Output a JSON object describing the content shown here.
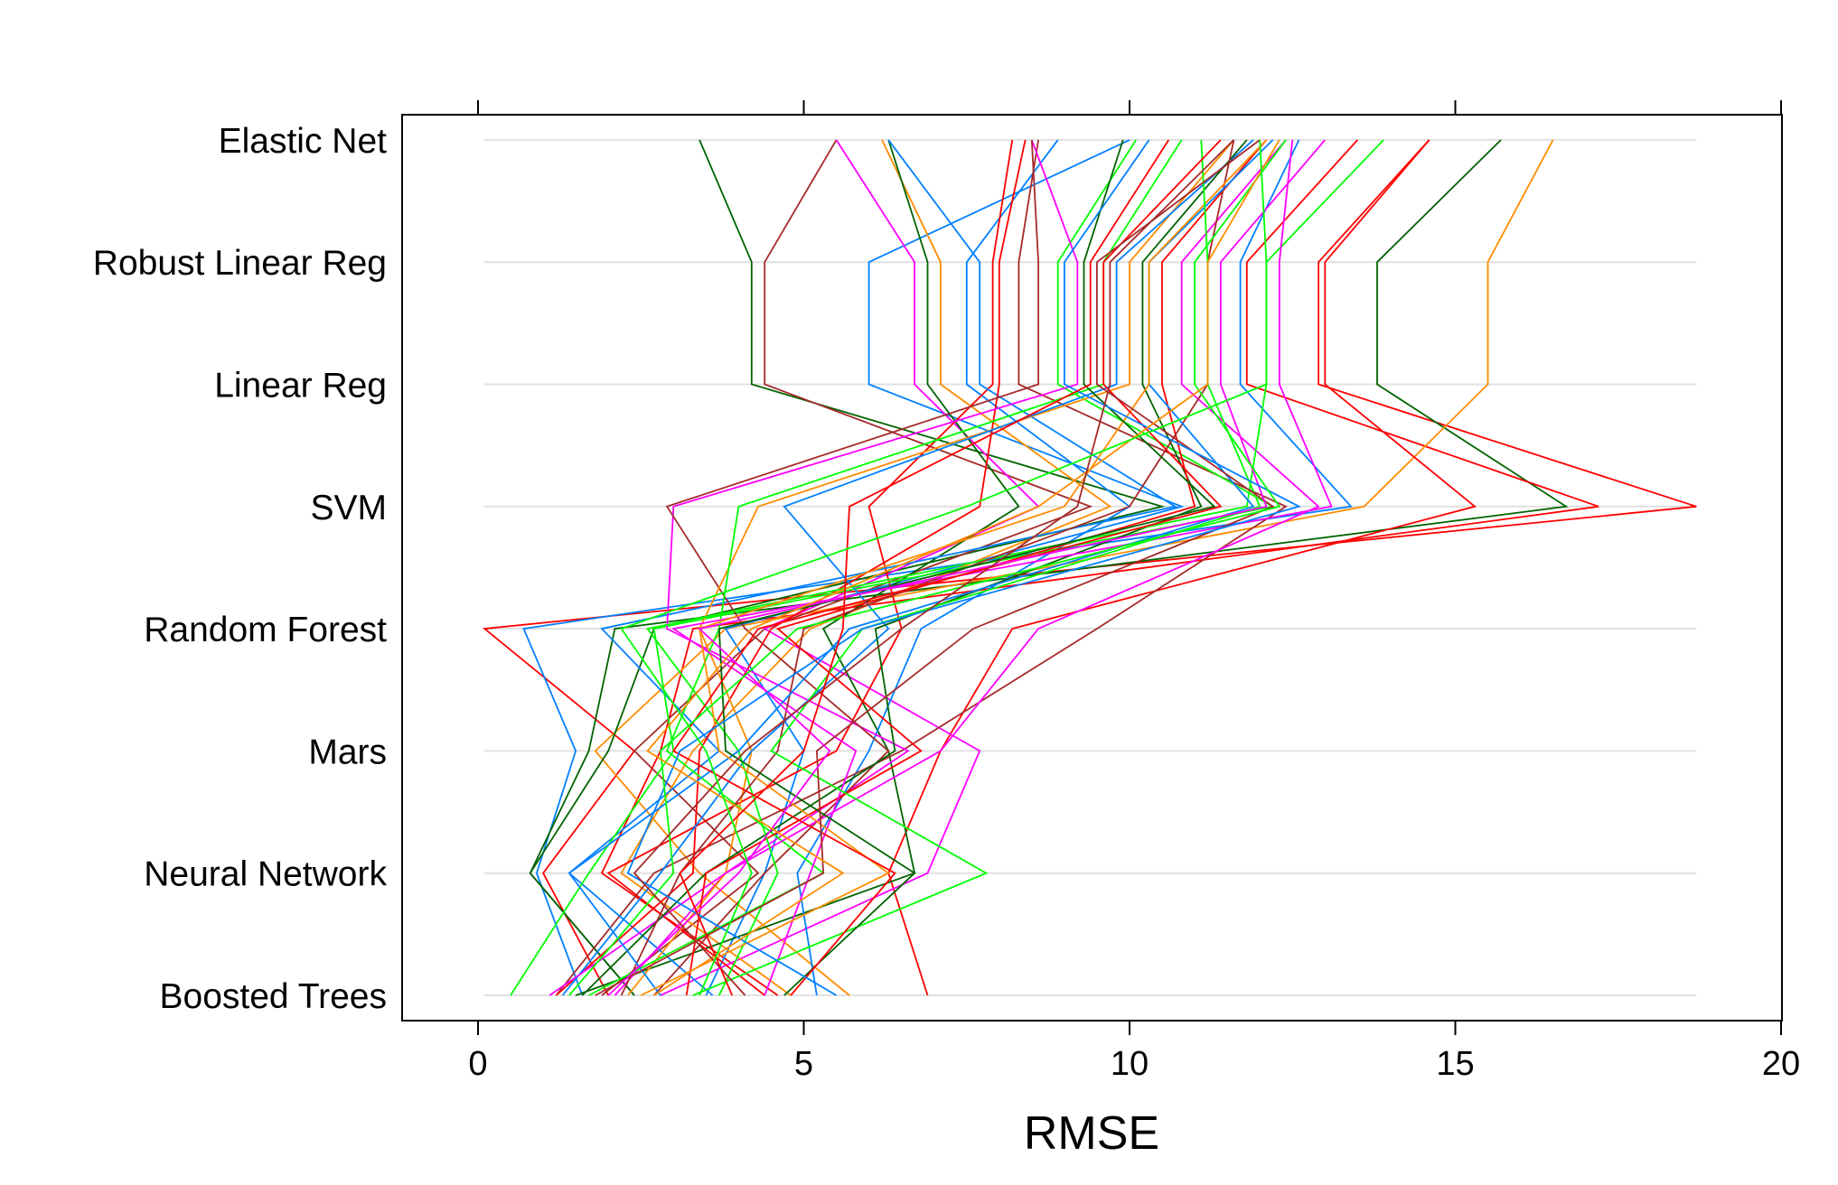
{
  "chart_data": {
    "type": "line",
    "subtype": "parallel-coordinates",
    "title": "",
    "xlabel": "RMSE",
    "ylabel": "",
    "xlim": [
      -1.2,
      20
    ],
    "x_ticks": [
      "0",
      "5",
      "10",
      "15",
      "20"
    ],
    "x_tick_values": [
      0,
      5,
      10,
      15,
      20
    ],
    "grid": "horizontal",
    "categories": [
      "Boosted Trees",
      "Neural Network",
      "Mars",
      "Random Forest",
      "SVM",
      "Linear Reg",
      "Robust Linear Reg",
      "Elastic Net"
    ],
    "palette": [
      "#0080ff",
      "#ff00ff",
      "#006400",
      "#ff0000",
      "#ff8c00",
      "#00ff00",
      "#a52a2a"
    ],
    "series": [
      {
        "color": "#ff0000",
        "values": [
          2.0,
          1.0,
          2.4,
          0.1,
          18.7,
          12.9,
          12.9,
          14.6
        ]
      },
      {
        "color": "#0080ff",
        "values": [
          1.6,
          0.9,
          1.5,
          0.7,
          13.4,
          11.7,
          11.7,
          12.6
        ]
      },
      {
        "color": "#006400",
        "values": [
          2.4,
          0.8,
          1.7,
          2.1,
          16.7,
          13.8,
          13.8,
          15.7
        ]
      },
      {
        "color": "#ff0000",
        "values": [
          4.6,
          1.9,
          2.8,
          3.3,
          17.2,
          11.8,
          11.8,
          13.5
        ]
      },
      {
        "color": "#ff8c00",
        "values": [
          5.7,
          3.4,
          1.8,
          3.8,
          13.6,
          15.5,
          15.5,
          16.5
        ]
      },
      {
        "color": "#ff0000",
        "values": [
          6.9,
          6.3,
          7.1,
          8.2,
          15.3,
          13.0,
          13.0,
          14.6
        ]
      },
      {
        "color": "#006400",
        "values": [
          2.4,
          0.8,
          2.0,
          2.7,
          10.5,
          4.2,
          4.2,
          3.4
        ]
      },
      {
        "color": "#a52a2a",
        "values": [
          1.9,
          4.3,
          2.4,
          4.4,
          9.4,
          4.4,
          4.4,
          5.5
        ]
      },
      {
        "color": "#0080ff",
        "values": [
          3.5,
          4.4,
          5.0,
          3.8,
          10.8,
          6.0,
          6.0,
          10.0
        ]
      },
      {
        "color": "#ff00ff",
        "values": [
          2.8,
          6.9,
          7.7,
          4.4,
          8.6,
          6.7,
          6.7,
          5.5
        ]
      },
      {
        "color": "#ff8c00",
        "values": [
          4.8,
          2.2,
          3.3,
          5.1,
          9.7,
          7.1,
          7.1,
          6.2
        ]
      },
      {
        "color": "#006400",
        "values": [
          1.5,
          6.7,
          6.3,
          5.3,
          8.3,
          6.9,
          6.9,
          6.3
        ]
      },
      {
        "color": "#0080ff",
        "values": [
          5.2,
          4.9,
          6.0,
          6.8,
          10.0,
          7.5,
          7.5,
          8.9
        ]
      },
      {
        "color": "#ff0000",
        "values": [
          4.4,
          2.0,
          5.5,
          6.5,
          6.0,
          7.9,
          7.9,
          8.2
        ]
      },
      {
        "color": "#a52a2a",
        "values": [
          1.2,
          2.7,
          6.5,
          9.5,
          12.4,
          8.3,
          8.3,
          8.6
        ]
      },
      {
        "color": "#0080ff",
        "values": [
          3.6,
          1.4,
          3.7,
          1.9,
          10.7,
          7.7,
          7.7,
          6.3
        ]
      },
      {
        "color": "#ff0000",
        "values": [
          1.2,
          3.3,
          3.4,
          4.5,
          7.7,
          8.0,
          8.0,
          8.4
        ]
      },
      {
        "color": "#00ff00",
        "values": [
          0.5,
          1.7,
          3.0,
          2.7,
          12.2,
          8.9,
          8.9,
          10.1
        ]
      },
      {
        "color": "#ff00ff",
        "values": [
          2.1,
          3.8,
          6.6,
          2.9,
          3.0,
          9.2,
          9.2,
          8.5
        ]
      },
      {
        "color": "#a52a2a",
        "values": [
          2.7,
          4.4,
          6.3,
          4.1,
          2.9,
          8.6,
          8.6,
          8.5
        ]
      },
      {
        "color": "#ff8c00",
        "values": [
          2.3,
          3.8,
          4.2,
          3.4,
          4.3,
          10.0,
          10.0,
          11.6
        ]
      },
      {
        "color": "#00ff00",
        "values": [
          1.7,
          5.3,
          2.9,
          3.7,
          4.0,
          9.6,
          9.6,
          10.8
        ]
      },
      {
        "color": "#0080ff",
        "values": [
          1.3,
          2.8,
          4.2,
          6.3,
          4.7,
          9.8,
          9.8,
          11.9
        ]
      },
      {
        "color": "#ff00ff",
        "values": [
          1.1,
          3.8,
          7.1,
          8.6,
          12.9,
          10.8,
          10.8,
          12.4
        ]
      },
      {
        "color": "#006400",
        "values": [
          1.6,
          3.5,
          6.4,
          6.1,
          11.1,
          10.2,
          10.2,
          11.8
        ]
      },
      {
        "color": "#ff0000",
        "values": [
          3.2,
          3.5,
          6.8,
          4.6,
          11.0,
          10.5,
          10.5,
          12.1
        ]
      },
      {
        "color": "#00ff00",
        "values": [
          3.7,
          4.6,
          4.0,
          2.6,
          11.8,
          12.1,
          12.1,
          13.9
        ]
      },
      {
        "color": "#ff00ff",
        "values": [
          4.4,
          5.1,
          5.8,
          3.0,
          13.1,
          12.3,
          12.3,
          12.5
        ]
      },
      {
        "color": "#a52a2a",
        "values": [
          2.2,
          3.1,
          4.6,
          5.0,
          10.0,
          11.2,
          11.2,
          11.6
        ]
      },
      {
        "color": "#0080ff",
        "values": [
          2.8,
          1.4,
          4.0,
          5.7,
          11.9,
          10.3,
          10.3,
          12.2
        ]
      },
      {
        "color": "#ff8c00",
        "values": [
          2.5,
          6.3,
          3.7,
          3.4,
          9.0,
          10.3,
          10.3,
          12.1
        ]
      },
      {
        "color": "#00ff00",
        "values": [
          3.3,
          7.8,
          4.5,
          5.9,
          12.0,
          11.2,
          11.2,
          11.1
        ]
      },
      {
        "color": "#006400",
        "values": [
          4.7,
          6.7,
          3.8,
          3.7,
          11.3,
          9.3,
          9.3,
          9.9
        ]
      },
      {
        "color": "#ff0000",
        "values": [
          4.8,
          6.4,
          3.0,
          4.3,
          11.4,
          9.6,
          9.6,
          11.4
        ]
      },
      {
        "color": "#a52a2a",
        "values": [
          1.8,
          5.3,
          5.2,
          7.6,
          12.2,
          9.5,
          9.5,
          12.0
        ]
      },
      {
        "color": "#ff00ff",
        "values": [
          2.0,
          4.0,
          5.4,
          3.4,
          12.1,
          11.4,
          11.4,
          13.0
        ]
      },
      {
        "color": "#0080ff",
        "values": [
          5.5,
          2.3,
          3.1,
          5.9,
          12.6,
          9.0,
          9.0,
          10.3
        ]
      },
      {
        "color": "#00ff00",
        "values": [
          1.4,
          3.0,
          2.8,
          4.9,
          12.3,
          11.0,
          11.0,
          12.4
        ]
      },
      {
        "color": "#ff8c00",
        "values": [
          2.7,
          5.6,
          2.6,
          4.2,
          8.6,
          11.2,
          11.2,
          12.3
        ]
      },
      {
        "color": "#a52a2a",
        "values": [
          4.1,
          2.4,
          4.1,
          6.5,
          9.2,
          9.7,
          9.7,
          11.6
        ]
      },
      {
        "color": "#ff0000",
        "values": [
          3.9,
          3.1,
          5.0,
          5.6,
          5.7,
          9.4,
          9.4,
          10.6
        ]
      },
      {
        "color": "#00ff00",
        "values": [
          3.4,
          4.2,
          3.5,
          2.2,
          7.5,
          12.1,
          12.1,
          12.0
        ]
      }
    ]
  }
}
